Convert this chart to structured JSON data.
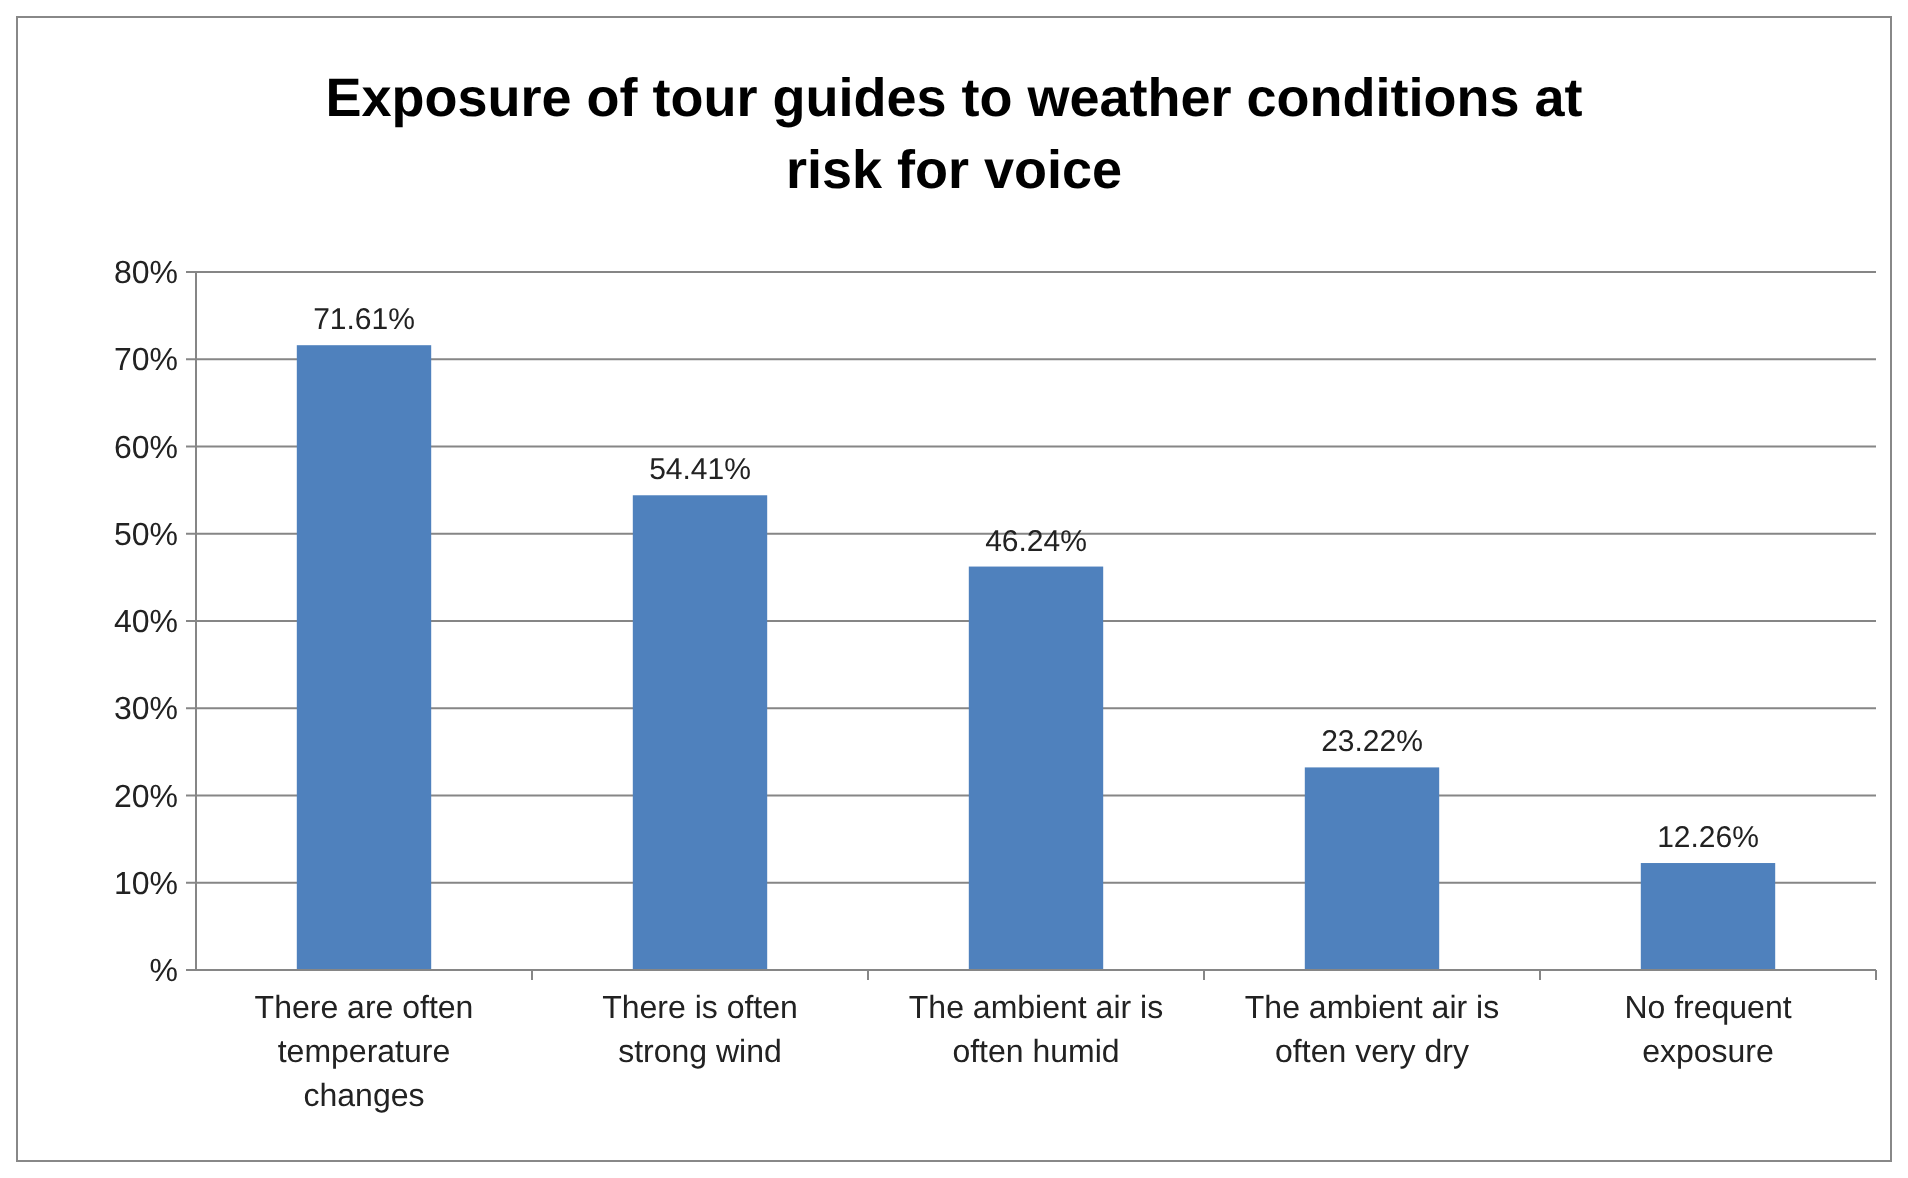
{
  "chart_data": {
    "type": "bar",
    "title": "Exposure of tour guides to weather conditions at risk for voice",
    "categories": [
      "There are often temperature changes",
      "There is often strong wind",
      "The ambient air is often humid",
      "The ambient air is often very dry",
      "No frequent exposure"
    ],
    "values": [
      71.61,
      54.41,
      46.24,
      23.22,
      12.26
    ],
    "value_labels": [
      "71.61%",
      "54.41%",
      "46.24%",
      "23.22%",
      "12.26%"
    ],
    "color": "#4f81bd",
    "ylim": [
      0,
      80
    ],
    "yticks": [
      {
        "value": 0,
        "label": "%"
      },
      {
        "value": 10,
        "label": "10%"
      },
      {
        "value": 20,
        "label": "20%"
      },
      {
        "value": 30,
        "label": "30%"
      },
      {
        "value": 40,
        "label": "40%"
      },
      {
        "value": 50,
        "label": "50%"
      },
      {
        "value": 60,
        "label": "60%"
      },
      {
        "value": 70,
        "label": "70%"
      },
      {
        "value": 80,
        "label": "80%"
      }
    ],
    "grid": "y"
  }
}
